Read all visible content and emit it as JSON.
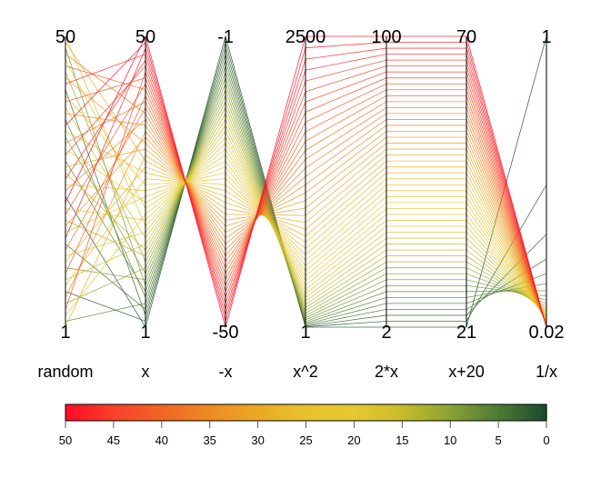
{
  "chart_data": {
    "type": "parallel-coordinates",
    "axes": [
      {
        "name": "random",
        "max_label": "50",
        "min_label": "1",
        "min": 1,
        "max": 50
      },
      {
        "name": "x",
        "max_label": "50",
        "min_label": "1",
        "min": 1,
        "max": 50
      },
      {
        "name": "-x",
        "max_label": "-1",
        "min_label": "-50",
        "min": -50,
        "max": -1
      },
      {
        "name": "x^2",
        "max_label": "2500",
        "min_label": "1",
        "min": 1,
        "max": 2500
      },
      {
        "name": "2*x",
        "max_label": "100",
        "min_label": "2",
        "min": 2,
        "max": 100
      },
      {
        "name": "x+20",
        "max_label": "70",
        "min_label": "21",
        "min": 21,
        "max": 70
      },
      {
        "name": "1/x",
        "max_label": "1",
        "min_label": "0.02",
        "min": 0.02,
        "max": 1
      }
    ],
    "x": [
      1,
      2,
      3,
      4,
      5,
      6,
      7,
      8,
      9,
      10,
      11,
      12,
      13,
      14,
      15,
      16,
      17,
      18,
      19,
      20,
      21,
      22,
      23,
      24,
      25,
      26,
      27,
      28,
      29,
      30,
      31,
      32,
      33,
      34,
      35,
      36,
      37,
      38,
      39,
      40,
      41,
      42,
      43,
      44,
      45,
      46,
      47,
      48,
      49,
      50
    ],
    "random": [
      23,
      7,
      41,
      15,
      2,
      36,
      29,
      48,
      11,
      33,
      5,
      44,
      19,
      27,
      9,
      38,
      13,
      50,
      21,
      3,
      46,
      31,
      17,
      25,
      40,
      8,
      34,
      12,
      49,
      1,
      28,
      43,
      18,
      6,
      37,
      24,
      47,
      14,
      32,
      10,
      45,
      20,
      39,
      4,
      30,
      26,
      42,
      16,
      35,
      22
    ],
    "color_by": "x",
    "colorbar": {
      "ticks": [
        "50",
        "45",
        "40",
        "35",
        "30",
        "25",
        "20",
        "15",
        "10",
        "5",
        "0"
      ],
      "range": [
        50,
        0
      ],
      "colors": [
        "#ff0a24",
        "#f8402a",
        "#f26424",
        "#ee8a22",
        "#eba824",
        "#e7c22c",
        "#e6c830",
        "#c8bc2a",
        "#8aa232",
        "#4c7a36",
        "#1a4a2c"
      ]
    }
  }
}
